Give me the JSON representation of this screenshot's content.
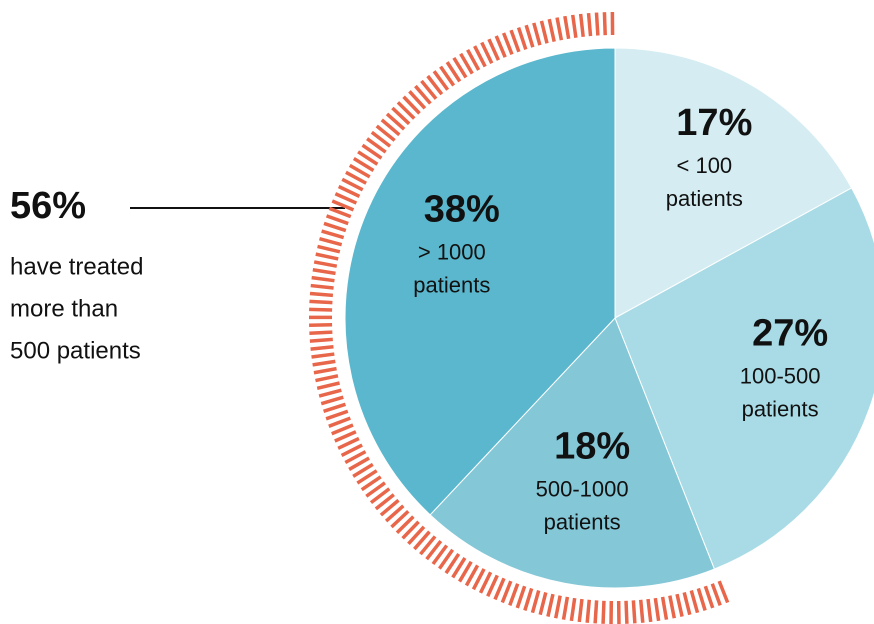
{
  "chart_data": {
    "type": "pie",
    "categories": [
      "< 100 patients",
      "100-500 patients",
      "500-1000 patients",
      "> 1000 patients"
    ],
    "values": [
      17,
      27,
      18,
      38
    ],
    "value_labels": [
      "17%",
      "27%",
      "18%",
      "38%"
    ],
    "colors": [
      "#d5edf2",
      "#a8dbe6",
      "#84c7d7",
      "#5bb7cd"
    ],
    "annotation": {
      "value": 56,
      "value_label": "56%",
      "lines": [
        "have treated",
        "more than",
        "500 patients"
      ]
    },
    "highlight_color": "#e8664a"
  }
}
